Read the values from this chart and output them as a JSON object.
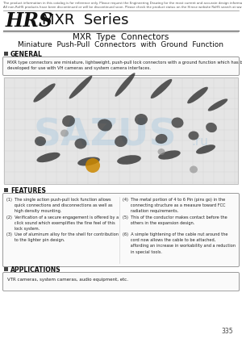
{
  "top_disclaimer_line1": "The product information in this catalog is for reference only. Please request the Engineering Drawing for the most current and accurate design information.",
  "top_disclaimer_line2": "All non-RoHS products have been discontinued or will be discontinued soon. Please check the product status on the Hirose website RoHS search at www.hirose-connectors.com, or contact your Hirose sales representative.",
  "brand": "HRS",
  "series": "MXR  Series",
  "title1": "MXR  Type  Connectors",
  "title2": "Miniature  Push-Pull  Connectors  with  Ground  Function",
  "section1_label": "GENERAL",
  "general_text": "MXR type connectors are miniature, lightweight, push-pull lock connectors with a ground function which has been\ndeveloped for use with VH cameras and system camera interfaces.",
  "section2_label": "FEATURES",
  "feat1_1": "(1)  The single action push-pull lock function allows\n      quick connections and disconnections as well as\n      high density mounting.",
  "feat1_2": "(2)  Verification of a secure engagement is offered by a\n      click sound which exemplifies the fine feel of this\n      lock system.",
  "feat1_3": "(3)  Use of aluminum alloy for the shell for contribution\n      to the lighter pin design.",
  "feat2_1": "(4)  The metal portion of 4 to 6 Pin (pins go) in the\n      connecting structure as a measure toward FCC\n      radiation requirements.",
  "feat2_2": "(5)  This of the conductor makes contact before the\n      others in the expansion design.",
  "feat2_3": "(6)  A simple tightening of the cable nut around the\n      cord now allows the cable to be attached,\n      affording an increase in workability and a reduction\n      in special tools.",
  "section3_label": "APPLICATIONS",
  "applications_text": "VTR cameras, system cameras, audio equipment, etc.",
  "page_number": "335",
  "bg_color": "#ffffff",
  "section_sq_color": "#444444",
  "watermark_color": "#b0cce0",
  "watermark_text": "SAZUS",
  "watermark_ru": ".ru",
  "grid_color": "#d0d0d0",
  "photo_bg": "#e0e0e0",
  "box_edge_color": "#999999"
}
